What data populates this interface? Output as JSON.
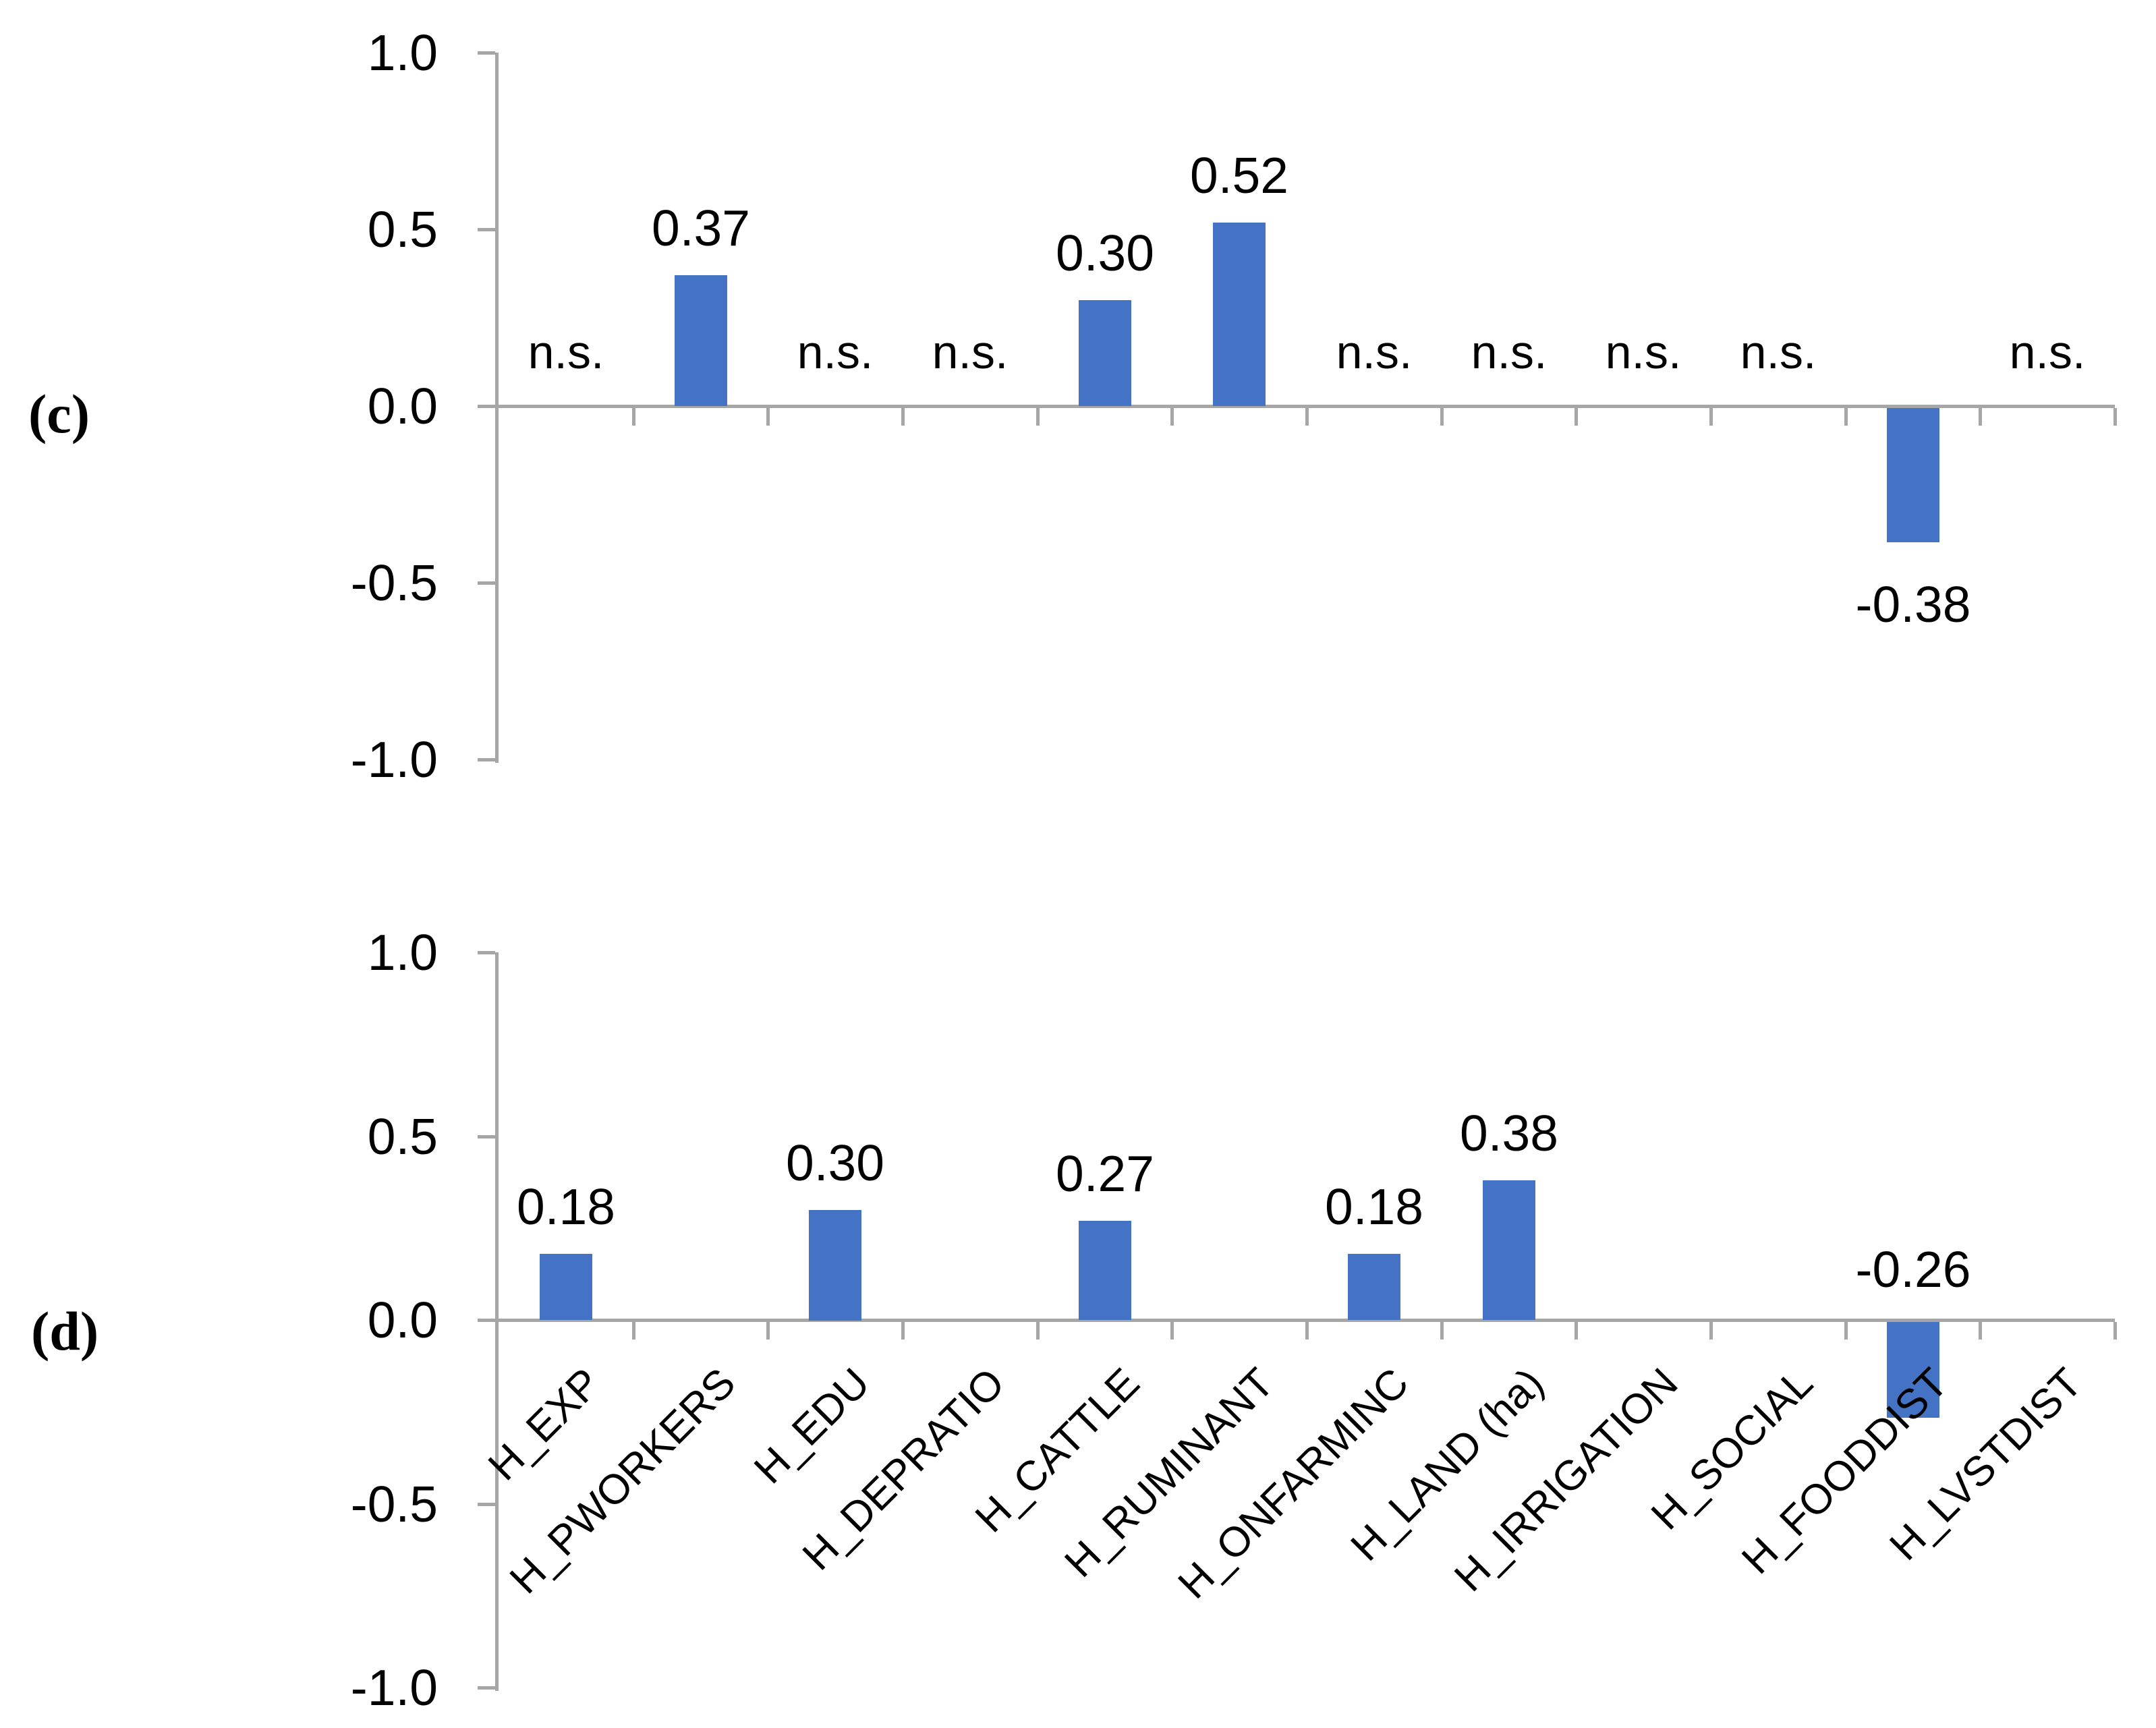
{
  "style": {
    "bar_color": "#4472C4",
    "axis_color": "#A6A6A6",
    "text_color": "#000000",
    "background_color": "#FFFFFF"
  },
  "chart_data": [
    {
      "type": "bar",
      "panel_label": "(c)",
      "categories": [
        "H_EXP",
        "H_PWORKERS",
        "H_EDU",
        "H_DEPRATIO",
        "H_CATTLE",
        "H_RUMINANT",
        "H_ONFARMINC",
        "H_LAND (ha)",
        "H_IRRIGATION",
        "H_SOCIAL",
        "H_FOODDIST",
        "H_LVSTDIST"
      ],
      "values": [
        null,
        0.37,
        null,
        null,
        0.3,
        0.52,
        null,
        null,
        null,
        null,
        -0.38,
        null
      ],
      "value_labels": [
        "n.s.",
        "0.37",
        "n.s.",
        "n.s.",
        "0.30",
        "0.52",
        "n.s.",
        "n.s.",
        "n.s.",
        "n.s.",
        "-0.38",
        "n.s."
      ],
      "not_significant_text": "n.s.",
      "ylim": [
        -1.0,
        1.0
      ],
      "y_tick_values": [
        1.0,
        0.5,
        0.0,
        -0.5,
        -1.0
      ],
      "y_tick_labels": [
        "1.0",
        "0.5",
        "0.0",
        "-0.5",
        "-1.0"
      ],
      "grid": false,
      "legend": false,
      "category_labels_shown": false,
      "negative_label_position": "below-bar"
    },
    {
      "type": "bar",
      "panel_label": "(d)",
      "categories": [
        "H_EXP",
        "H_PWORKERS",
        "H_EDU",
        "H_DEPRATIO",
        "H_CATTLE",
        "H_RUMINANT",
        "H_ONFARMINC",
        "H_LAND (ha)",
        "H_IRRIGATION",
        "H_SOCIAL",
        "H_FOODDIST",
        "H_LVSTDIST"
      ],
      "values": [
        0.18,
        null,
        0.3,
        null,
        0.27,
        null,
        0.18,
        0.38,
        null,
        null,
        -0.26,
        null
      ],
      "value_labels": [
        "0.18",
        "",
        "0.30",
        "",
        "0.27",
        "",
        "0.18",
        "0.38",
        "",
        "",
        "-0.26",
        ""
      ],
      "not_significant_text": "",
      "ylim": [
        -1.0,
        1.0
      ],
      "y_tick_values": [
        1.0,
        0.5,
        0.0,
        -0.5,
        -1.0
      ],
      "y_tick_labels": [
        "1.0",
        "0.5",
        "0.0",
        "-0.5",
        "-1.0"
      ],
      "grid": false,
      "legend": false,
      "category_labels_shown": true,
      "negative_label_position": "above-axis"
    }
  ]
}
